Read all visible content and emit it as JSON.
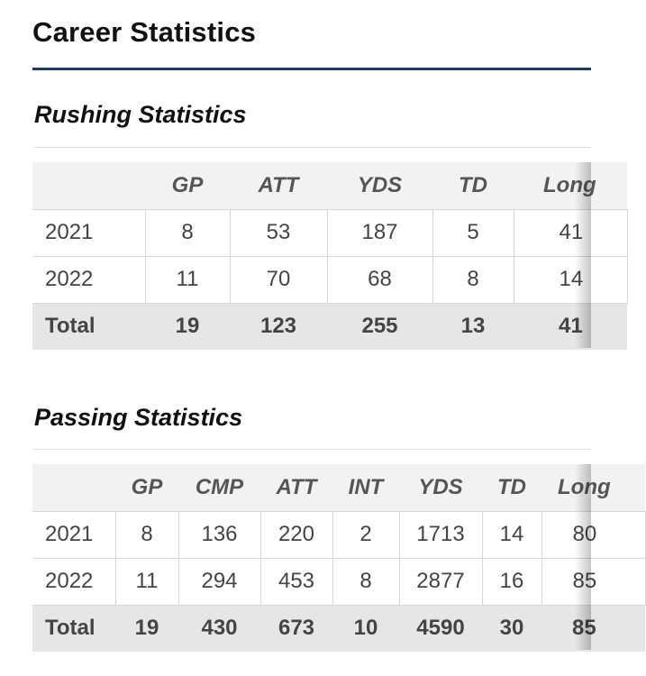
{
  "page": {
    "title": "Career Statistics"
  },
  "rushing": {
    "title": "Rushing Statistics",
    "columns": [
      "",
      "GP",
      "ATT",
      "YDS",
      "TD",
      "Long"
    ],
    "rows": [
      [
        "2021",
        "8",
        "53",
        "187",
        "5",
        "41"
      ],
      [
        "2022",
        "11",
        "70",
        "68",
        "8",
        "14"
      ]
    ],
    "total": [
      "Total",
      "19",
      "123",
      "255",
      "13",
      "41"
    ]
  },
  "passing": {
    "title": "Passing Statistics",
    "columns": [
      "",
      "GP",
      "CMP",
      "ATT",
      "INT",
      "YDS",
      "TD",
      "Long"
    ],
    "rows": [
      [
        "2021",
        "8",
        "136",
        "220",
        "2",
        "1713",
        "14",
        "80"
      ],
      [
        "2022",
        "11",
        "294",
        "453",
        "8",
        "2877",
        "16",
        "85"
      ]
    ],
    "total": [
      "Total",
      "19",
      "430",
      "673",
      "10",
      "4590",
      "30",
      "85"
    ]
  },
  "colors": {
    "title_rule": "#1e3a5f",
    "header_bg": "#f2f2f2",
    "total_bg": "#e6e6e6",
    "grid_line": "#d6d6d6"
  }
}
